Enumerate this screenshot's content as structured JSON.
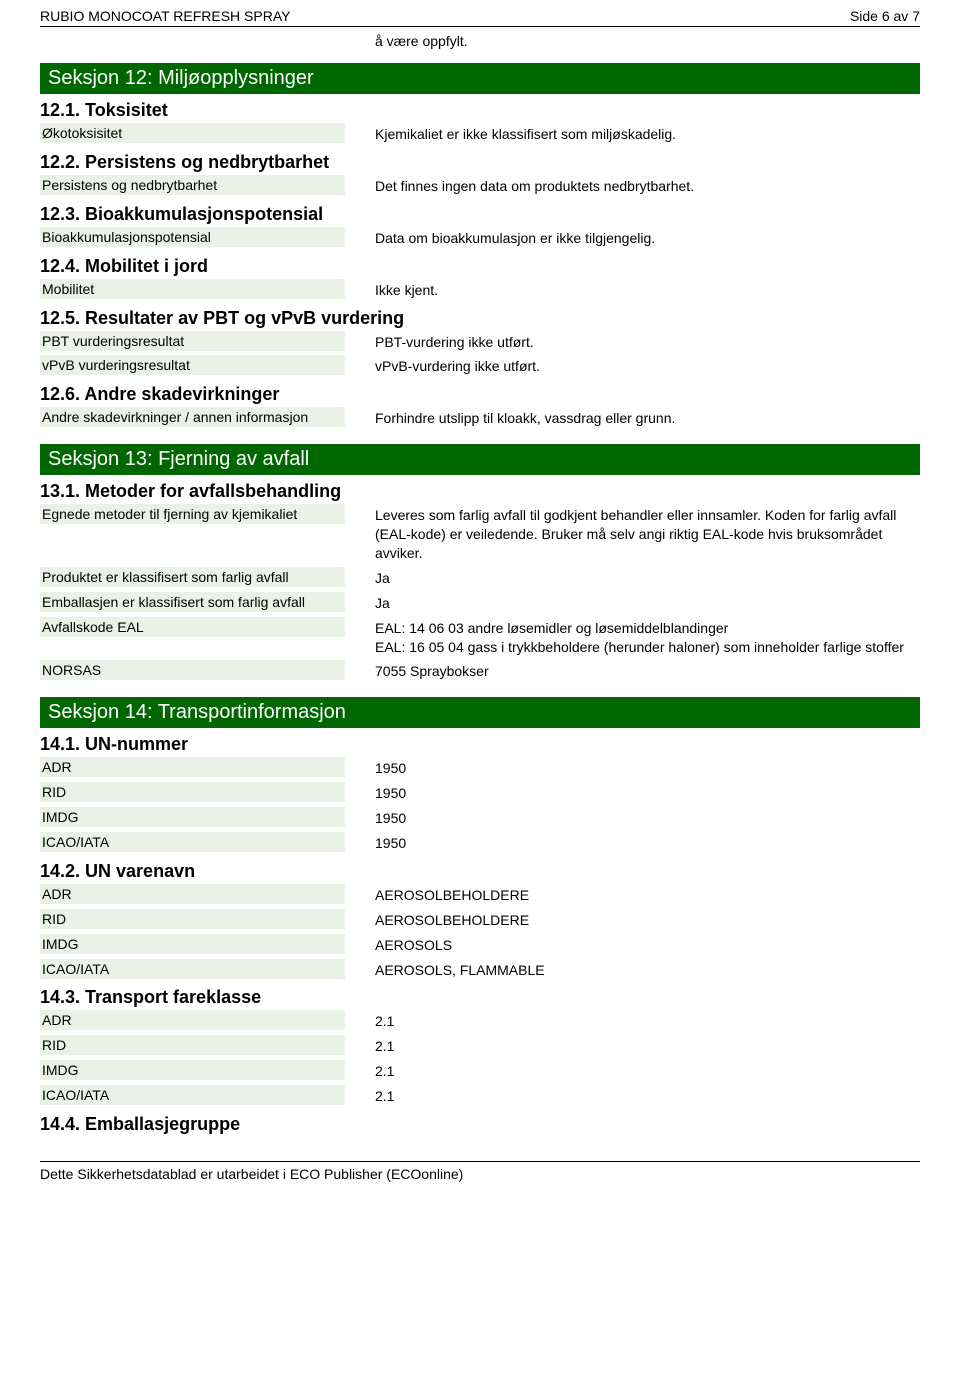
{
  "header": {
    "title": "RUBIO MONOCOAT REFRESH SPRAY",
    "page": "Side 6 av 7"
  },
  "note": "å være oppfylt.",
  "colors": {
    "sectionBar": "#006600",
    "labelBg": "#eaf1e6",
    "text": "#000000"
  },
  "section12": {
    "title": "Seksjon 12: Miljøopplysninger",
    "s12_1": {
      "heading": "12.1. Toksisitet",
      "rows": [
        {
          "label": "Økotoksisitet",
          "value": "Kjemikaliet er ikke klassifisert som miljøskadelig."
        }
      ]
    },
    "s12_2": {
      "heading": "12.2. Persistens og nedbrytbarhet",
      "rows": [
        {
          "label": "Persistens og nedbrytbarhet",
          "value": "Det finnes ingen data om produktets nedbrytbarhet."
        }
      ]
    },
    "s12_3": {
      "heading": "12.3. Bioakkumulasjonspotensial",
      "rows": [
        {
          "label": "Bioakkumulasjonspotensial",
          "value": "Data om bioakkumulasjon er ikke tilgjengelig."
        }
      ]
    },
    "s12_4": {
      "heading": "12.4. Mobilitet i jord",
      "rows": [
        {
          "label": "Mobilitet",
          "value": "Ikke kjent."
        }
      ]
    },
    "s12_5": {
      "heading": "12.5. Resultater av PBT og vPvB vurdering",
      "rows": [
        {
          "label": "PBT vurderingsresultat",
          "value": "PBT-vurdering ikke utført."
        },
        {
          "label": "vPvB vurderingsresultat",
          "value": "vPvB-vurdering ikke utført."
        }
      ]
    },
    "s12_6": {
      "heading": "12.6. Andre skadevirkninger",
      "rows": [
        {
          "label": "Andre skadevirkninger / annen informasjon",
          "value": "Forhindre utslipp til kloakk, vassdrag eller grunn."
        }
      ]
    }
  },
  "section13": {
    "title": "Seksjon 13: Fjerning av avfall",
    "s13_1": {
      "heading": "13.1. Metoder for avfallsbehandling",
      "rows": [
        {
          "label": "Egnede metoder til fjerning av kjemikaliet",
          "value": "Leveres som farlig avfall til godkjent behandler eller innsamler. Koden for farlig avfall (EAL-kode) er veiledende. Bruker må selv angi riktig EAL-kode hvis bruksområdet avviker."
        },
        {
          "label": "Produktet er klassifisert som farlig avfall",
          "value": "Ja"
        },
        {
          "label": "Emballasjen er klassifisert som farlig avfall",
          "value": "Ja"
        },
        {
          "label": "Avfallskode EAL",
          "value": "EAL: 14 06 03 andre løsemidler og løsemiddelblandinger\nEAL: 16 05 04 gass i trykkbeholdere (herunder haloner) som inneholder farlige stoffer"
        },
        {
          "label": "NORSAS",
          "value": "7055 Spraybokser"
        }
      ]
    }
  },
  "section14": {
    "title": "Seksjon 14: Transportinformasjon",
    "s14_1": {
      "heading": "14.1. UN-nummer",
      "rows": [
        {
          "label": "ADR",
          "value": "1950"
        },
        {
          "label": "RID",
          "value": "1950"
        },
        {
          "label": "IMDG",
          "value": "1950"
        },
        {
          "label": "ICAO/IATA",
          "value": "1950"
        }
      ]
    },
    "s14_2": {
      "heading": "14.2. UN varenavn",
      "rows": [
        {
          "label": "ADR",
          "value": "AEROSOLBEHOLDERE"
        },
        {
          "label": "RID",
          "value": "AEROSOLBEHOLDERE"
        },
        {
          "label": "IMDG",
          "value": "AEROSOLS"
        },
        {
          "label": "ICAO/IATA",
          "value": "AEROSOLS, FLAMMABLE"
        }
      ]
    },
    "s14_3": {
      "heading": "14.3. Transport fareklasse",
      "rows": [
        {
          "label": "ADR",
          "value": "2.1"
        },
        {
          "label": "RID",
          "value": "2.1"
        },
        {
          "label": "IMDG",
          "value": "2.1"
        },
        {
          "label": "ICAO/IATA",
          "value": "2.1"
        }
      ]
    },
    "s14_4": {
      "heading": "14.4. Emballasjegruppe"
    }
  },
  "footer": "Dette Sikkerhetsdatablad er utarbeidet i ECO Publisher (ECOonline)"
}
